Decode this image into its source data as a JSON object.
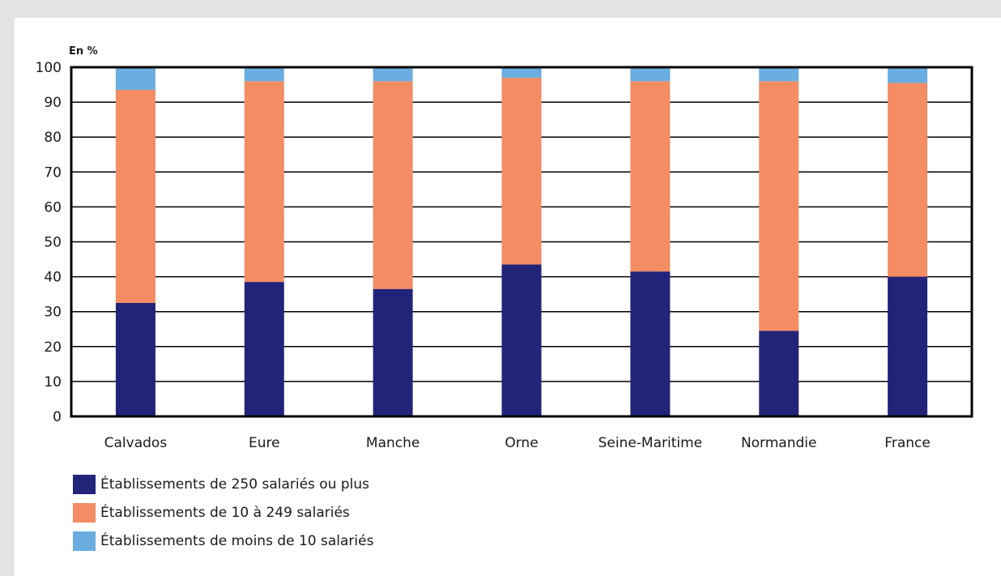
{
  "chart_data": {
    "type": "bar",
    "stacked": true,
    "unit_label": "En %",
    "categories": [
      "Calvados",
      "Eure",
      "Manche",
      "Orne",
      "Seine-Maritime",
      "Normandie",
      "France"
    ],
    "series": [
      {
        "name": "Établissements de 250 salariés ou plus",
        "color": "#22247a",
        "values": [
          32.5,
          38.5,
          36.5,
          43.5,
          41.5,
          24.5,
          40
        ]
      },
      {
        "name": "Établissements de 10 à 249 salariés",
        "color": "#f48c64",
        "values": [
          61,
          57.5,
          59.5,
          53.5,
          54.5,
          71.5,
          55.5
        ]
      },
      {
        "name": "Établissements de moins de 10 salariés",
        "color": "#6aade0",
        "values": [
          6.5,
          4,
          4,
          3,
          4,
          4,
          4.5
        ]
      }
    ],
    "ylim": [
      0,
      100
    ],
    "yticks": [
      0,
      10,
      20,
      30,
      40,
      50,
      60,
      70,
      80,
      90,
      100
    ],
    "grid": true
  }
}
